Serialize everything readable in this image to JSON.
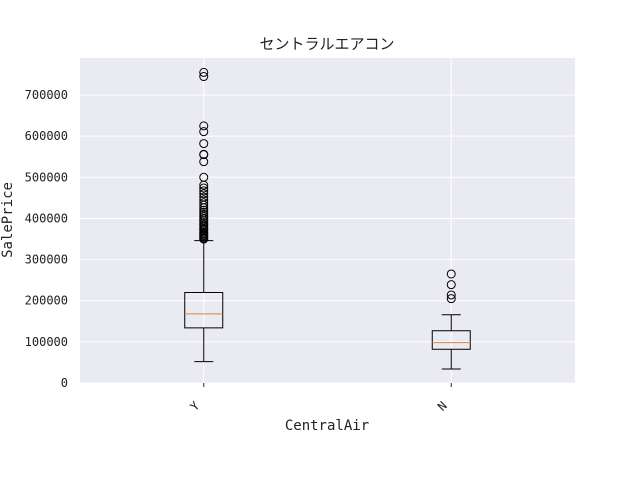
{
  "chart_data": {
    "type": "box",
    "title": "セントラルエアコン",
    "xlabel": "CentralAir",
    "ylabel": "SalePrice",
    "categories": [
      "Y",
      "N"
    ],
    "ylim": [
      0,
      790000
    ],
    "yticks": [
      0,
      100000,
      200000,
      300000,
      400000,
      500000,
      600000,
      700000
    ],
    "ytick_labels": [
      "0",
      "100000",
      "200000",
      "300000",
      "400000",
      "500000",
      "600000",
      "700000"
    ],
    "grid": true,
    "boxes": [
      {
        "category": "Y",
        "whisker_low": 52000,
        "q1": 134000,
        "median": 168000,
        "q3": 220000,
        "whisker_high": 346000,
        "outliers": [
          350000,
          352000,
          355000,
          358000,
          360000,
          363000,
          366000,
          370000,
          373000,
          376000,
          380000,
          384000,
          388000,
          392000,
          396000,
          400000,
          405000,
          410000,
          415000,
          420000,
          426000,
          432000,
          438000,
          445000,
          452000,
          460000,
          467000,
          474000,
          481000,
          500000,
          538000,
          555000,
          556000,
          582000,
          611000,
          625000,
          745000,
          755000
        ]
      },
      {
        "category": "N",
        "whisker_low": 34000,
        "q1": 82000,
        "median": 98000,
        "q3": 127000,
        "whisker_high": 166000,
        "outliers": [
          205000,
          214000,
          239000,
          265000
        ]
      }
    ],
    "colors": {
      "background": "#eaeaf2",
      "grid": "#ffffff",
      "box": "#000000",
      "median": "#e0823d"
    }
  }
}
